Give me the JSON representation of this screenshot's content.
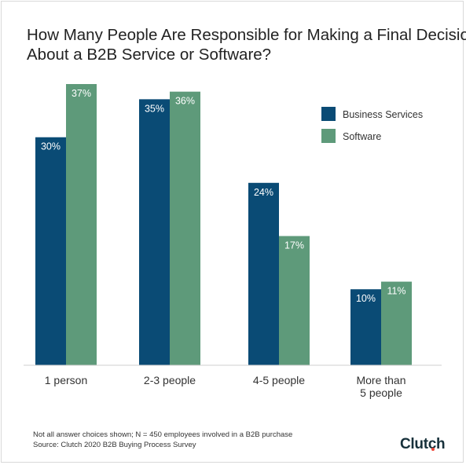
{
  "chart_data": {
    "type": "bar",
    "title_lines": [
      "How Many People Are Responsible for Making a Final Decision",
      "About a B2B Service or Software?"
    ],
    "categories": [
      [
        "1 person"
      ],
      [
        "2-3 people"
      ],
      [
        "4-5 people"
      ],
      [
        "More than",
        "5 people"
      ]
    ],
    "series": [
      {
        "name": "Business Services",
        "color": "#0a4b75",
        "values": [
          30,
          35,
          24,
          10
        ],
        "labels": [
          "30%",
          "35%",
          "24%",
          "10%"
        ]
      },
      {
        "name": "Software",
        "color": "#5e9a7a",
        "values": [
          37,
          36,
          17,
          11
        ],
        "labels": [
          "37%",
          "36%",
          "17%",
          "11%"
        ]
      }
    ],
    "ylim": [
      0,
      37
    ],
    "legend_position": "top-right",
    "grid": false
  },
  "footnote": {
    "line1": "Not all answer choices shown; N = 450 employees involved in a B2B purchase",
    "line2": "Source: Clutch 2020 B2B Buying Process Survey"
  },
  "brand": {
    "logo_text": "Clutch",
    "dot_color": "#ef4335"
  }
}
